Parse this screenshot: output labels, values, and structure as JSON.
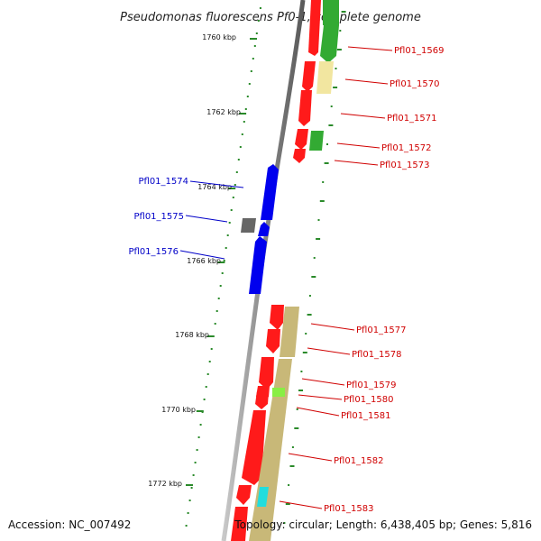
{
  "title": "Pseudomonas fluorescens Pf0-1, complete genome",
  "footer": {
    "accession": "Accession: NC_007492",
    "topology": "Topology: circular; Length: 6,438,405 bp; Genes: 5,816"
  },
  "ruler": [
    {
      "label": "1760 kbp"
    },
    {
      "label": "1762 kbp"
    },
    {
      "label": "1764 kbp"
    },
    {
      "label": "1766 kbp"
    },
    {
      "label": "1768 kbp"
    },
    {
      "label": "1770 kbp"
    },
    {
      "label": "1772 kbp"
    }
  ],
  "genes_forward": [
    {
      "name": "Pfl01_1569"
    },
    {
      "name": "Pfl01_1570"
    },
    {
      "name": "Pfl01_1571"
    },
    {
      "name": "Pfl01_1572"
    },
    {
      "name": "Pfl01_1573"
    },
    {
      "name": "Pfl01_1577"
    },
    {
      "name": "Pfl01_1578"
    },
    {
      "name": "Pfl01_1579"
    },
    {
      "name": "Pfl01_1580"
    },
    {
      "name": "Pfl01_1581"
    },
    {
      "name": "Pfl01_1582"
    },
    {
      "name": "Pfl01_1583"
    }
  ],
  "genes_reverse": [
    {
      "name": "Pfl01_1574"
    },
    {
      "name": "Pfl01_1575"
    },
    {
      "name": "Pfl01_1576"
    }
  ],
  "colors": {
    "cds": "#ff1a1a",
    "reverse_cds": "#0000ee",
    "rna": "#666666",
    "green_feature": "#33aa33",
    "light_green_feature": "#88ee44",
    "khaki_feature": "#c8b878",
    "pale_yellow_feature": "#f2e6a0",
    "cyan_feature": "#22dddd",
    "backbone": "#888888",
    "ruler_tick": "#2a8a2a",
    "label_red": "#d00000",
    "label_blue": "#0000c8"
  }
}
